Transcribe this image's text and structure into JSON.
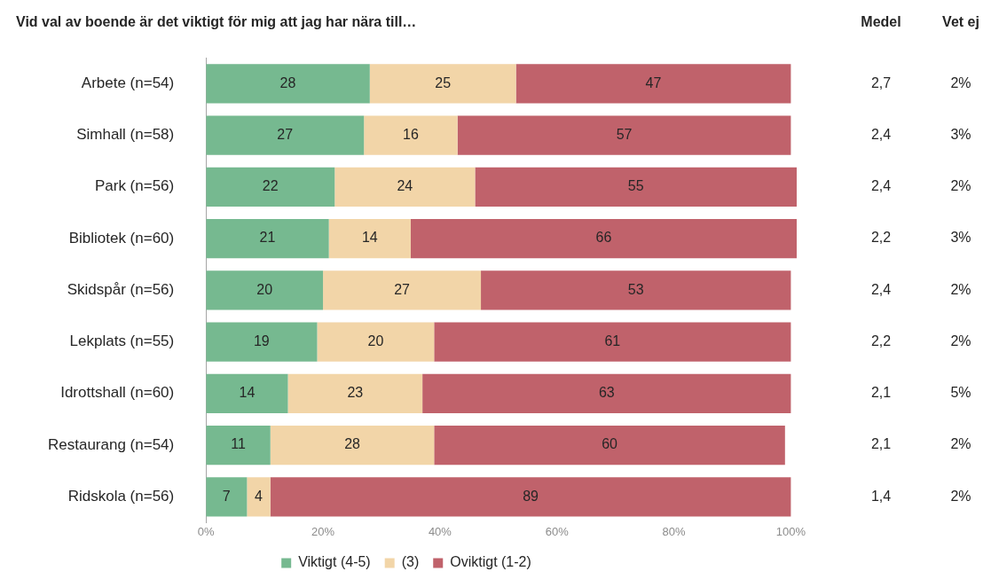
{
  "chart_data": {
    "type": "bar",
    "orientation": "horizontal",
    "stacked": true,
    "title": "Vid val av boende är det viktigt för mig att jag har nära till…",
    "categories": [
      "Arbete (n=54)",
      "Simhall (n=58)",
      "Park (n=56)",
      "Bibliotek (n=60)",
      "Skidspår (n=56)",
      "Lekplats (n=55)",
      "Idrottshall (n=60)",
      "Restaurang (n=54)",
      "Ridskola (n=56)"
    ],
    "series": [
      {
        "name": "Viktigt (4-5)",
        "color": "#76b990",
        "values": [
          28,
          27,
          22,
          21,
          20,
          19,
          14,
          11,
          7
        ]
      },
      {
        "name": "(3)",
        "color": "#f2d5a8",
        "values": [
          25,
          16,
          24,
          14,
          27,
          20,
          23,
          28,
          4
        ]
      },
      {
        "name": "Oviktigt (1-2)",
        "color": "#c0626b",
        "values": [
          47,
          57,
          55,
          66,
          53,
          61,
          63,
          60,
          89
        ]
      }
    ],
    "xlim": [
      0,
      101
    ],
    "xticks": [
      {
        "value": 0,
        "label": "0%"
      },
      {
        "value": 20,
        "label": "20%"
      },
      {
        "value": 40,
        "label": "40%"
      },
      {
        "value": 60,
        "label": "60%"
      },
      {
        "value": 80,
        "label": "80%"
      },
      {
        "value": 100,
        "label": "100%"
      }
    ],
    "data_labels": true,
    "grid": false,
    "legend": "bottom",
    "annotations": [
      "Medel",
      "2,7",
      "2,4",
      "2,4",
      "2,2",
      "2,4",
      "2,2",
      "2,1",
      "2,1",
      "1,4",
      "Vet ej",
      "2%",
      "3%",
      "2%",
      "3%",
      "2%",
      "2%",
      "5%",
      "2%",
      "2%"
    ]
  }
}
